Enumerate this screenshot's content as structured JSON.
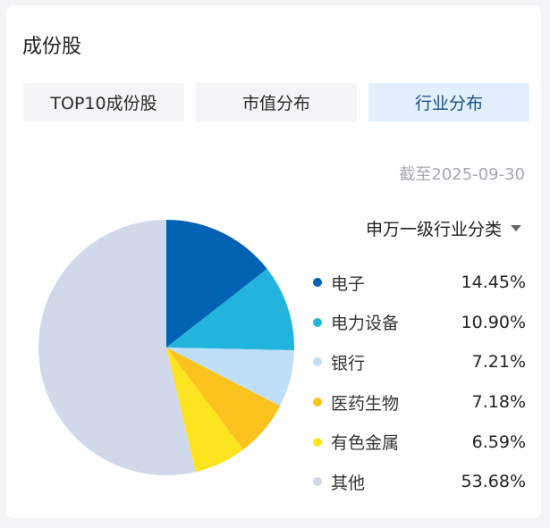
{
  "header": {
    "title": "成份股"
  },
  "tabs": [
    {
      "label": "TOP10成份股",
      "active": false
    },
    {
      "label": "市值分布",
      "active": false
    },
    {
      "label": "行业分布",
      "active": true
    }
  ],
  "as_of": "截至2025-09-30",
  "classification_dropdown": {
    "selected": "申万一级行业分类"
  },
  "legend": [
    {
      "name": "电子",
      "value": "14.45%",
      "color": "#0162b4"
    },
    {
      "name": "电力设备",
      "value": "10.90%",
      "color": "#23b4de"
    },
    {
      "name": "银行",
      "value": "7.21%",
      "color": "#bedff7"
    },
    {
      "name": "医药生物",
      "value": "7.18%",
      "color": "#fcc31e"
    },
    {
      "name": "有色金属",
      "value": "6.59%",
      "color": "#fde421"
    },
    {
      "name": "其他",
      "value": "53.68%",
      "color": "#d0d8ea"
    }
  ],
  "chart_data": {
    "type": "pie",
    "title": "行业分布",
    "subtitle": "截至2025-09-30",
    "categories": [
      "电子",
      "电力设备",
      "银行",
      "医药生物",
      "有色金属",
      "其他"
    ],
    "values": [
      14.45,
      10.9,
      7.21,
      7.18,
      6.59,
      53.68
    ],
    "unit": "%",
    "colors": [
      "#0162b4",
      "#23b4de",
      "#bedff7",
      "#fcc31e",
      "#fde421",
      "#d0d8ea"
    ],
    "legend_position": "right",
    "start_angle": "12 o'clock, clockwise"
  }
}
